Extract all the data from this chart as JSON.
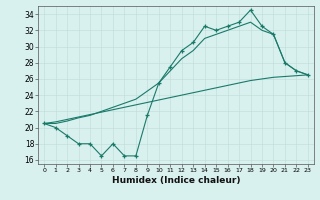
{
  "x": [
    0,
    1,
    2,
    3,
    4,
    5,
    6,
    7,
    8,
    9,
    10,
    11,
    12,
    13,
    14,
    15,
    16,
    17,
    18,
    19,
    20,
    21,
    22,
    23
  ],
  "line1": [
    20.5,
    20.0,
    19.0,
    18.0,
    18.0,
    16.5,
    18.0,
    16.5,
    16.5,
    21.5,
    25.5,
    27.5,
    29.5,
    30.5,
    32.5,
    32.0,
    32.5,
    33.0,
    34.5,
    32.5,
    31.5,
    28.0,
    27.0,
    26.5
  ],
  "line2": [
    20.5,
    20.5,
    20.8,
    21.2,
    21.5,
    22.0,
    22.5,
    23.0,
    23.5,
    24.5,
    25.5,
    27.0,
    28.5,
    29.5,
    31.0,
    31.5,
    32.0,
    32.5,
    33.0,
    32.0,
    31.5,
    28.0,
    27.0,
    26.5
  ],
  "line3": [
    20.5,
    20.7,
    21.0,
    21.3,
    21.6,
    21.9,
    22.2,
    22.5,
    22.8,
    23.1,
    23.4,
    23.7,
    24.0,
    24.3,
    24.6,
    24.9,
    25.2,
    25.5,
    25.8,
    26.0,
    26.2,
    26.3,
    26.4,
    26.5
  ],
  "color": "#1a7a6a",
  "bg_color": "#d8f0ee",
  "grid_color": "#c0dbd8",
  "xlabel": "Humidex (Indice chaleur)",
  "ylim": [
    15.5,
    35.0
  ],
  "xlim": [
    -0.5,
    23.5
  ],
  "yticks": [
    16,
    18,
    20,
    22,
    24,
    26,
    28,
    30,
    32,
    34
  ],
  "xticks": [
    0,
    1,
    2,
    3,
    4,
    5,
    6,
    7,
    8,
    9,
    10,
    11,
    12,
    13,
    14,
    15,
    16,
    17,
    18,
    19,
    20,
    21,
    22,
    23
  ]
}
